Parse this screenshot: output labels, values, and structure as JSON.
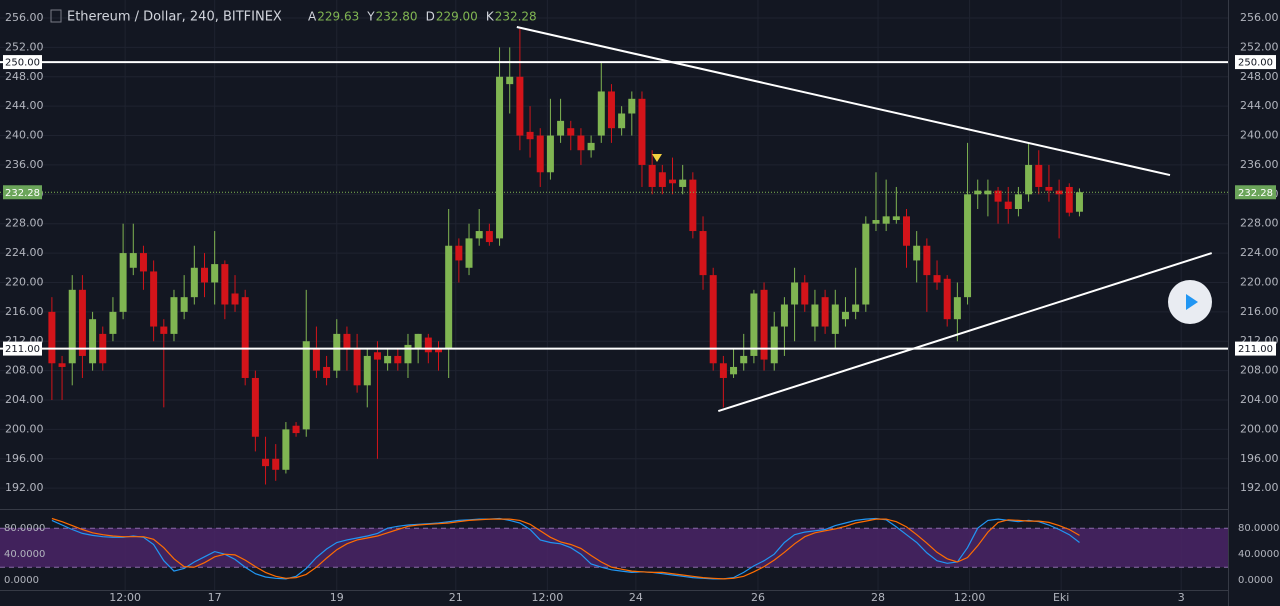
{
  "chart_data": [
    {
      "type": "candlestick",
      "title": "Ethereum / Dollar, 240, BITFINEX",
      "legend": [
        {
          "name": "A",
          "value_label": "229.63"
        },
        {
          "name": "Y",
          "value_label": "232.80"
        },
        {
          "name": "D",
          "value_label": "229.00"
        },
        {
          "name": "K",
          "value_label": "232.28"
        }
      ],
      "up_color": "#80b552",
      "down_color": "#d3141a",
      "open": [
        216,
        209,
        209,
        219,
        209,
        213,
        213,
        216,
        222,
        224,
        221.5,
        214,
        213,
        216,
        218,
        222,
        220,
        222.5,
        218.5,
        218,
        207,
        196,
        196,
        194.5,
        200.5,
        200,
        211,
        208.5,
        208,
        213,
        211,
        206,
        210.5,
        209,
        210,
        209,
        211,
        212.5,
        211,
        211,
        225,
        222,
        226,
        227,
        226,
        247,
        248,
        240.5,
        240,
        235,
        240,
        241,
        240,
        238,
        240,
        246,
        241,
        243,
        245,
        236,
        235,
        234,
        233,
        234,
        227,
        221,
        209,
        207.5,
        209,
        210,
        219,
        209,
        214,
        217,
        220,
        214,
        218,
        213,
        215,
        216,
        217,
        228,
        228,
        228.5,
        229,
        223,
        225,
        221,
        220.5,
        215,
        218,
        232,
        232,
        232.5,
        231,
        230,
        232,
        236,
        233,
        232.5,
        233,
        229.63
      ],
      "close": [
        209,
        208.5,
        219,
        210,
        215,
        209,
        216,
        224,
        224,
        221.5,
        214,
        213,
        218,
        218,
        222,
        220,
        222.5,
        217,
        217,
        207,
        199,
        195,
        194.5,
        200,
        199.5,
        212,
        208,
        207,
        213,
        211,
        206,
        210,
        209.5,
        210,
        209,
        211.5,
        213,
        210.5,
        210.5,
        225,
        223,
        226,
        227,
        225.5,
        248,
        248,
        240,
        239.5,
        235,
        240,
        242,
        240,
        238,
        239,
        246,
        241,
        243,
        245,
        236,
        233,
        233,
        233.5,
        234,
        227,
        221,
        209,
        207,
        208.5,
        210,
        218.5,
        209.5,
        214,
        217,
        220,
        217,
        217,
        214,
        217,
        216,
        217,
        228,
        228.5,
        229,
        229,
        225,
        225,
        221,
        220,
        215,
        218,
        232,
        232.5,
        232.5,
        231,
        230,
        232,
        236,
        233,
        232.5,
        232,
        229.5,
        232.28
      ],
      "high": [
        218,
        210,
        221,
        221,
        216,
        214,
        218,
        228,
        228,
        225,
        223,
        215,
        219,
        221,
        225,
        224,
        227,
        223,
        221,
        219,
        208,
        199,
        198,
        201,
        201,
        219,
        214,
        210,
        215,
        214,
        213,
        211,
        212,
        211,
        211,
        213,
        213,
        213,
        212,
        230,
        226,
        228,
        230,
        228,
        252,
        252,
        254.5,
        244,
        241,
        245,
        245,
        242,
        241,
        240,
        250,
        247,
        244,
        246,
        246,
        238,
        236,
        237,
        236,
        235,
        229,
        222,
        210,
        211,
        213,
        219,
        220,
        216,
        218,
        222,
        221,
        219,
        219,
        219,
        218,
        222,
        229,
        235,
        234,
        233,
        230,
        227,
        226,
        223,
        221,
        220,
        239,
        234,
        234,
        233,
        233,
        233,
        239,
        238,
        236,
        234,
        233.5,
        232.8
      ],
      "low": [
        204,
        204,
        206,
        207,
        208,
        208,
        212,
        215,
        221,
        219,
        212,
        203,
        212,
        215,
        217,
        218,
        217,
        215,
        216,
        206,
        197,
        192.5,
        193,
        194,
        199,
        199,
        207,
        206,
        207,
        208,
        205,
        203,
        196,
        208,
        208,
        207,
        209,
        209,
        208,
        207,
        220,
        221,
        225,
        225,
        225,
        243,
        238,
        237,
        233,
        234,
        239,
        238,
        236,
        237,
        239,
        239,
        240,
        240,
        233,
        232,
        232,
        232,
        232,
        226,
        219,
        208,
        203,
        207,
        208,
        209,
        208,
        208,
        210,
        212,
        216,
        212,
        213,
        211,
        214,
        215,
        216,
        227,
        227,
        228,
        222,
        220,
        216,
        219,
        214,
        212,
        217,
        230,
        229,
        228,
        228,
        229,
        231,
        232,
        231,
        226,
        229,
        229
      ],
      "xlim": [
        -5.1,
        115.6
      ],
      "ylim": [
        189.3,
        258.45
      ],
      "yticks": [
        {
          "value": 192,
          "label": "192.00"
        },
        {
          "value": 196,
          "label": "196.00"
        },
        {
          "value": 200,
          "label": "200.00"
        },
        {
          "value": 204,
          "label": "204.00"
        },
        {
          "value": 208,
          "label": "208.00"
        },
        {
          "value": 212,
          "label": "212.00"
        },
        {
          "value": 216,
          "label": "216.00"
        },
        {
          "value": 220,
          "label": "220.00"
        },
        {
          "value": 224,
          "label": "224.00"
        },
        {
          "value": 228,
          "label": "228.00"
        },
        {
          "value": 232,
          "label": "232.00"
        },
        {
          "value": 236,
          "label": "236.00"
        },
        {
          "value": 240,
          "label": "240.00"
        },
        {
          "value": 244,
          "label": "244.00"
        },
        {
          "value": 248,
          "label": "248.00"
        },
        {
          "value": 252,
          "label": "252.00"
        },
        {
          "value": 256,
          "label": "256.00"
        }
      ],
      "xticks": [
        {
          "value": 7.2,
          "label": "12:00"
        },
        {
          "value": 16,
          "label": "17"
        },
        {
          "value": 28,
          "label": "19"
        },
        {
          "value": 39.7,
          "label": "21"
        },
        {
          "value": 48.7,
          "label": "12:00"
        },
        {
          "value": 57.4,
          "label": "24"
        },
        {
          "value": 69.4,
          "label": "26"
        },
        {
          "value": 81.2,
          "label": "28"
        },
        {
          "value": 90.2,
          "label": "12:00"
        },
        {
          "value": 99.2,
          "label": "Eki"
        },
        {
          "value": 111,
          "label": "3"
        }
      ],
      "hlines": [
        {
          "value": 250,
          "label": "250.00"
        },
        {
          "value": 211,
          "label": "211.00"
        }
      ],
      "last_price": {
        "value": 232.28,
        "label": "232.28"
      },
      "trendlines": [
        {
          "x": [
            45.7,
            109.9
          ],
          "y": [
            254.77,
            234.62
          ]
        },
        {
          "x": [
            65.5,
            114
          ],
          "y": [
            202.49,
            224
          ]
        }
      ],
      "grid": true
    },
    {
      "type": "line",
      "ylim": [
        -15,
        108
      ],
      "yticks": [
        {
          "value": 0,
          "label": "0.0000"
        },
        {
          "value": 40,
          "label": "40.0000"
        },
        {
          "value": 80,
          "label": "80.0000"
        }
      ],
      "band": [
        20,
        80
      ],
      "band_color": "#4a2466",
      "series": [
        {
          "color": "#2196f3",
          "values": [
            92,
            85,
            78,
            72,
            69,
            67,
            66,
            66,
            68,
            66,
            55,
            30,
            14,
            18,
            28,
            36,
            44,
            40,
            32,
            20,
            10,
            5,
            3,
            2,
            6,
            18,
            35,
            48,
            58,
            62,
            65,
            68,
            72,
            80,
            83,
            85,
            86,
            87,
            88,
            90,
            92,
            93,
            94,
            94,
            95,
            92,
            88,
            78,
            62,
            58,
            56,
            50,
            40,
            25,
            20,
            16,
            14,
            12,
            13,
            12,
            10,
            8,
            6,
            4,
            3,
            2,
            2,
            4,
            12,
            22,
            30,
            40,
            58,
            70,
            74,
            76,
            78,
            84,
            88,
            92,
            94,
            95,
            93,
            82,
            70,
            58,
            42,
            30,
            26,
            28,
            50,
            80,
            92,
            94,
            92,
            90,
            92,
            90,
            85,
            78,
            70,
            58
          ]
        },
        {
          "color": "#ff6d00",
          "values": [
            95,
            90,
            84,
            78,
            73,
            70,
            68,
            67,
            67,
            67,
            63,
            50,
            33,
            21,
            20,
            27,
            36,
            40,
            39,
            31,
            21,
            12,
            6,
            3,
            4,
            9,
            20,
            34,
            47,
            56,
            62,
            65,
            68,
            73,
            78,
            83,
            85,
            86,
            87,
            88,
            90,
            92,
            93,
            94,
            94,
            94,
            92,
            86,
            76,
            66,
            59,
            55,
            49,
            38,
            28,
            20,
            17,
            14,
            13,
            12,
            12,
            10,
            8,
            6,
            4,
            3,
            2,
            3,
            6,
            13,
            21,
            31,
            43,
            56,
            67,
            73,
            76,
            79,
            83,
            88,
            91,
            94,
            94,
            90,
            82,
            70,
            57,
            43,
            33,
            28,
            35,
            53,
            74,
            89,
            93,
            92,
            91,
            91,
            89,
            84,
            78,
            69
          ]
        }
      ]
    }
  ]
}
